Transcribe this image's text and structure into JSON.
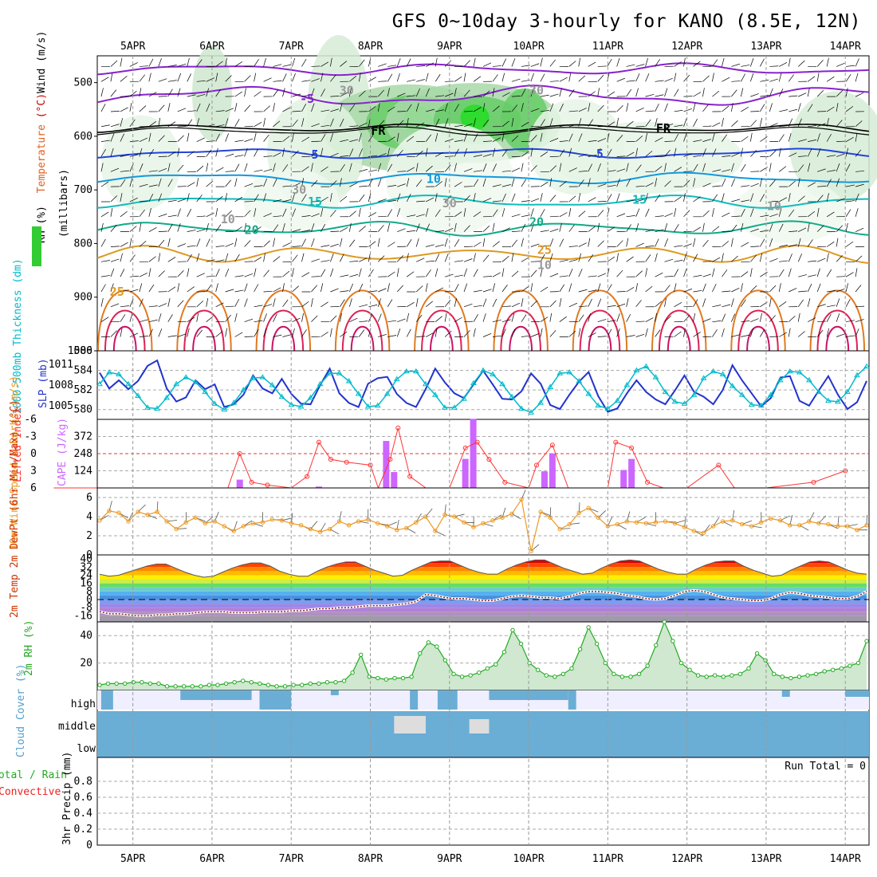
{
  "title": "GFS 0~10day 3-hourly for KANO (8.5E, 12N)",
  "colors": {
    "wind": "#000000",
    "temperature": "#cc0000",
    "temperature_word": "#e06020",
    "rh": "#22aa22",
    "thickness": "#00bbcc",
    "slp": "#2233cc",
    "lifted_index": "#ff3333",
    "cape": "#cc66ff",
    "wind10m": "#ee9922",
    "temp2m": "#ff4400",
    "dewpt2m": "#882222",
    "rh2m": "#22aa22",
    "cloud": "#6aaed6",
    "precip_total": "#22aa22",
    "precip_conv": "#ee2222"
  },
  "chart_data": [
    {
      "type": "contour",
      "panel": "upper-air",
      "x_labels": [
        "5APR",
        "6APR",
        "7APR",
        "8APR",
        "9APR",
        "10APR",
        "11APR",
        "12APR",
        "13APR",
        "14APR"
      ],
      "ylabel_parts": [
        "RH (%)",
        "Temperature",
        " (°C)",
        "Wind",
        " (m/s)"
      ],
      "ylabel2": "(millibars)",
      "y_ticks": [
        500,
        600,
        700,
        800,
        900,
        1000
      ],
      "ylim": [
        450,
        1000
      ],
      "inverted": true,
      "contour_labels": [
        {
          "text": "-5",
          "x": 3.2,
          "y": 530,
          "color": "#8822cc"
        },
        {
          "text": "FR",
          "x": 4.1,
          "y": 590,
          "color": "#000000"
        },
        {
          "text": "FR",
          "x": 7.7,
          "y": 585,
          "color": "#000000"
        },
        {
          "text": "5",
          "x": 3.3,
          "y": 634,
          "color": "#2244dd"
        },
        {
          "text": "5",
          "x": 6.9,
          "y": 633,
          "color": "#2244dd"
        },
        {
          "text": "10",
          "x": 4.8,
          "y": 680,
          "color": "#1199dd"
        },
        {
          "text": "15",
          "x": 3.3,
          "y": 722,
          "color": "#11bbbb"
        },
        {
          "text": "15",
          "x": 7.4,
          "y": 718,
          "color": "#11bbbb"
        },
        {
          "text": "20",
          "x": 2.5,
          "y": 775,
          "color": "#11aa88"
        },
        {
          "text": "20",
          "x": 6.1,
          "y": 760,
          "color": "#11aa88"
        },
        {
          "text": "25",
          "x": 6.2,
          "y": 812,
          "color": "#dd9922"
        },
        {
          "text": "25",
          "x": 0.8,
          "y": 890,
          "color": "#dd9922"
        },
        {
          "text": "30",
          "x": 3.7,
          "y": 515,
          "color": "#999999"
        },
        {
          "text": "30",
          "x": 6.1,
          "y": 515,
          "color": "#999999"
        },
        {
          "text": "30",
          "x": 3.1,
          "y": 700,
          "color": "#999999"
        },
        {
          "text": "30",
          "x": 5.0,
          "y": 725,
          "color": "#999999"
        },
        {
          "text": "10",
          "x": 2.2,
          "y": 755,
          "color": "#999999"
        },
        {
          "text": "10",
          "x": 9.1,
          "y": 730,
          "color": "#999999"
        },
        {
          "text": "10",
          "x": 6.2,
          "y": 840,
          "color": "#999999"
        }
      ]
    },
    {
      "type": "line",
      "panel": "thickness-slp",
      "ylabel_left": "1000-500mb Thickness (dm)",
      "ylabel_right": "SLP (mb)",
      "y_ticks_left": [
        580,
        582,
        584,
        586
      ],
      "y_ticks_right": [
        1005,
        1008,
        1011
      ],
      "ylim_left": [
        579,
        586
      ],
      "series": [
        {
          "name": "SLP (mb)",
          "color": "#2233cc",
          "values": [
            1009.8,
            1007.5,
            1008.7,
            1007.4,
            1008.6,
            1010.8,
            1011.6,
            1007.5,
            1005.6,
            1006.2,
            1008.7,
            1007.4,
            1008.1,
            1004.8,
            1005.2,
            1006.6,
            1009.4,
            1007.5,
            1006.8,
            1008.9,
            1006.7,
            1005.3,
            1005.2,
            1008.0,
            1010.4,
            1006.8,
            1005.4,
            1004.8,
            1008.2,
            1009.0,
            1009.2,
            1006.7,
            1005.4,
            1004.8,
            1007.4,
            1010.4,
            1008.4,
            1006.8,
            1006.1,
            1008.1,
            1010.1,
            1008.1,
            1006.0,
            1005.9,
            1007.1,
            1009.7,
            1008.2,
            1005.1,
            1004.5,
            1006.6,
            1008.5,
            1009.9,
            1006.4,
            1004.1,
            1004.6,
            1006.8,
            1008.7,
            1007.0,
            1005.9,
            1005.2,
            1007.2,
            1009.4,
            1007.0,
            1006.3,
            1005.2,
            1007.3,
            1010.9,
            1008.7,
            1006.8,
            1004.9,
            1006.1,
            1009.1,
            1009.3,
            1005.7,
            1005.0,
            1007.2,
            1009.3,
            1006.6,
            1004.5,
            1005.5,
            1008.6
          ]
        },
        {
          "name": "Thickness (dm)",
          "color": "#00bbcc",
          "values": [
            582.6,
            583.8,
            583.6,
            582.6,
            581.4,
            580.2,
            580.1,
            581.2,
            582.6,
            583.3,
            582.8,
            581.8,
            580.6,
            580.0,
            580.7,
            582.0,
            583.2,
            583.3,
            582.5,
            581.3,
            580.5,
            580.3,
            581.2,
            582.6,
            583.7,
            583.7,
            582.9,
            581.6,
            580.3,
            580.4,
            581.6,
            583.1,
            583.9,
            583.9,
            582.6,
            581.5,
            580.2,
            580.2,
            581.1,
            582.7,
            584.0,
            583.6,
            582.6,
            581.3,
            580.1,
            579.7,
            580.7,
            582.3,
            583.7,
            583.8,
            582.9,
            581.6,
            580.4,
            580.1,
            580.9,
            582.5,
            584.0,
            584.4,
            583.3,
            581.8,
            580.8,
            580.6,
            581.5,
            583.2,
            583.9,
            583.6,
            582.4,
            581.5,
            580.5,
            580.4,
            581.5,
            583.0,
            583.9,
            583.8,
            583.0,
            581.8,
            580.9,
            580.8,
            581.8,
            583.5,
            584.4
          ]
        }
      ]
    },
    {
      "type": "bar",
      "panel": "li-cape",
      "ylabel_left": "Lifted Index",
      "ylabel_right": "CAPE (J/kg)",
      "y_ticks_left": [
        -6,
        -3,
        0,
        3,
        6
      ],
      "y_ticks_right": [
        124,
        248,
        372
      ],
      "series": [
        {
          "name": "CAPE (J/kg)",
          "color": "#cc66ff",
          "x": [
            2.35,
            3.35,
            4.2,
            4.3,
            5.2,
            5.3,
            6.2,
            6.3,
            7.2,
            7.3
          ],
          "values": [
            60,
            10,
            340,
            115,
            210,
            500,
            120,
            250,
            130,
            210
          ]
        },
        {
          "name": "Lifted Index",
          "color": "#ff3333",
          "x": [
            0,
            2.2,
            2.35,
            2.5,
            2.7,
            3.0,
            3.2,
            3.35,
            3.5,
            3.7,
            4.0,
            4.1,
            4.25,
            4.35,
            4.5,
            4.7,
            5.0,
            5.2,
            5.35,
            5.5,
            5.7,
            6.0,
            6.1,
            6.3,
            6.5,
            7.0,
            7.1,
            7.3,
            7.5,
            7.7,
            8.0,
            8.4,
            8.6,
            9.0,
            9.6,
            10.0
          ],
          "values": [
            6,
            6,
            0,
            5,
            5.5,
            6,
            4,
            -2,
            1,
            1.5,
            2,
            6,
            1,
            -4.5,
            4,
            6,
            6,
            -1,
            -2,
            1,
            5,
            6,
            2,
            -1.5,
            6,
            6,
            -2,
            -1,
            5,
            6,
            6,
            2,
            6,
            6,
            5,
            3
          ]
        }
      ]
    },
    {
      "type": "line",
      "panel": "wind10m",
      "ylabel": "10m Wind Speed & Barbs (m/s)",
      "y_ticks": [
        0,
        2,
        4,
        6
      ],
      "ylim": [
        0,
        7
      ],
      "series": [
        {
          "name": "10m Wind Speed",
          "color": "#ee9922",
          "values": [
            3.6,
            4.6,
            4.4,
            3.5,
            4.5,
            4.2,
            4.5,
            3.5,
            2.7,
            3.4,
            3.9,
            3.3,
            3.5,
            3.0,
            2.5,
            3.0,
            3.3,
            3.4,
            3.7,
            3.6,
            3.3,
            3.1,
            2.7,
            2.4,
            2.7,
            3.5,
            3.1,
            3.5,
            3.7,
            3.3,
            3.0,
            2.6,
            2.8,
            3.4,
            4.0,
            2.5,
            4.2,
            4.0,
            3.4,
            2.9,
            3.3,
            3.6,
            3.9,
            4.3,
            5.8,
            0.4,
            4.5,
            3.9,
            2.7,
            3.2,
            4.4,
            4.9,
            3.9,
            3.0,
            3.2,
            3.5,
            3.4,
            3.3,
            3.4,
            3.5,
            3.3,
            2.9,
            2.5,
            2.3,
            3.0,
            3.5,
            3.6,
            3.2,
            3.0,
            3.4,
            3.8,
            3.6,
            3.1,
            3.1,
            3.5,
            3.3,
            3.2,
            3.0,
            3.0,
            2.6,
            3.1
          ]
        }
      ]
    },
    {
      "type": "area",
      "panel": "temp2m",
      "ylabel": "2m Temp 2m DewPt (6hr Min/Max) (°C)",
      "y_ticks": [
        -16,
        -8,
        0,
        8,
        16,
        24,
        32,
        40
      ],
      "ylim": [
        -22,
        44
      ],
      "series": [
        {
          "name": "2m Temp",
          "color": "#ff4400",
          "values": [
            25,
            23,
            24,
            27,
            30,
            33,
            35,
            35,
            31,
            27,
            24,
            22,
            23,
            27,
            31,
            34,
            36,
            36,
            33,
            28,
            25,
            23,
            23,
            28,
            32,
            35,
            37,
            37,
            33,
            29,
            26,
            23,
            24,
            29,
            33,
            37,
            38,
            38,
            34,
            30,
            27,
            25,
            25,
            30,
            34,
            37,
            39,
            39,
            35,
            31,
            28,
            25,
            26,
            31,
            35,
            38,
            39,
            38,
            34,
            30,
            27,
            25,
            25,
            30,
            34,
            37,
            38,
            38,
            33,
            29,
            26,
            23,
            24,
            29,
            33,
            37,
            38,
            37,
            33,
            29,
            26,
            25
          ]
        },
        {
          "name": "2m DewPt",
          "color": "#882222",
          "values": [
            -12,
            -14,
            -14,
            -15,
            -16,
            -16,
            -15,
            -15,
            -14,
            -14,
            -13,
            -12,
            -12,
            -12,
            -13,
            -13,
            -13,
            -12,
            -12,
            -12,
            -11,
            -11,
            -10,
            -9,
            -9,
            -8,
            -8,
            -7,
            -6,
            -6,
            -6,
            -5,
            -4,
            -2,
            5,
            4,
            2,
            1,
            1,
            0,
            -1,
            -1,
            1,
            3,
            4,
            3,
            2,
            2,
            1,
            3,
            6,
            8,
            8,
            7,
            6,
            4,
            3,
            1,
            0,
            1,
            4,
            8,
            9,
            8,
            5,
            2,
            1,
            0,
            -1,
            -1,
            1,
            5,
            7,
            6,
            4,
            3,
            2,
            1,
            1,
            3,
            8
          ]
        }
      ]
    },
    {
      "type": "area",
      "panel": "rh2m",
      "ylabel": "2m RH (%)",
      "y_ticks": [
        20,
        40
      ],
      "ylim": [
        0,
        50
      ],
      "series": [
        {
          "name": "2m RH",
          "color": "#22aa22",
          "values": [
            4,
            5,
            5,
            5,
            6,
            6,
            5,
            5,
            3,
            3,
            3,
            3,
            3,
            4,
            4,
            5,
            6,
            7,
            6,
            5,
            4,
            3,
            3,
            4,
            4,
            5,
            5,
            6,
            6,
            7,
            13,
            26,
            10,
            9,
            8,
            9,
            9,
            10,
            27,
            35,
            32,
            22,
            12,
            10,
            11,
            13,
            16,
            19,
            28,
            44,
            34,
            20,
            15,
            11,
            10,
            12,
            16,
            30,
            46,
            34,
            20,
            12,
            10,
            10,
            12,
            18,
            33,
            50,
            36,
            20,
            15,
            11,
            10,
            11,
            10,
            11,
            12,
            16,
            27,
            22,
            12,
            10,
            9,
            10,
            11,
            12,
            14,
            15,
            16,
            18,
            20,
            36
          ]
        }
      ]
    },
    {
      "type": "bar",
      "panel": "cloud",
      "ylabel": "Cloud Cover (%)",
      "level_labels": [
        "high",
        "middle",
        "low"
      ]
    },
    {
      "type": "bar",
      "panel": "precip",
      "ylabel_parts": [
        "Total / Rain",
        "Convective",
        "3hr Precip (mm)"
      ],
      "y_ticks": [
        "0",
        "0.2",
        "0.4",
        "0.6",
        "0.8"
      ],
      "ylim": [
        0,
        1
      ],
      "run_total": "Run Total = 0",
      "values": []
    }
  ]
}
